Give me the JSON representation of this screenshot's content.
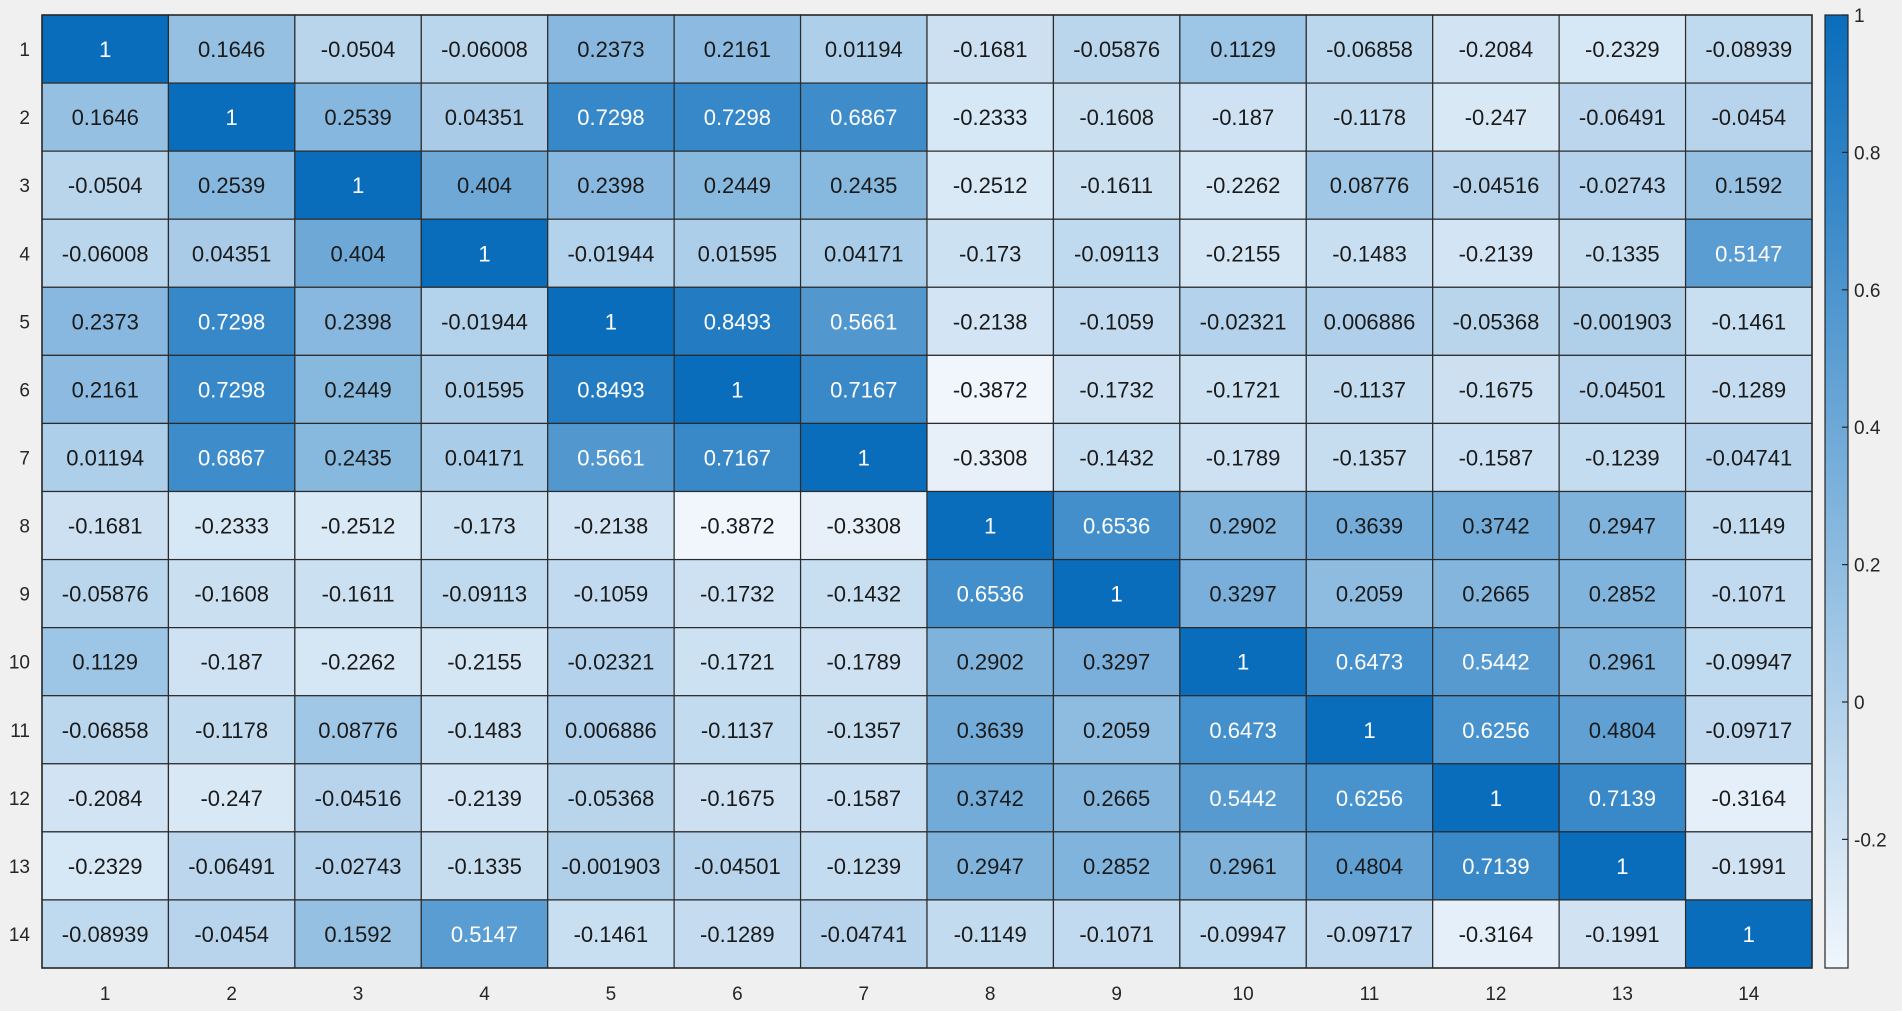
{
  "chart_data": {
    "type": "heatmap",
    "title": "",
    "xlabel": "",
    "ylabel": "",
    "x_categories": [
      "1",
      "2",
      "3",
      "4",
      "5",
      "6",
      "7",
      "8",
      "9",
      "10",
      "11",
      "12",
      "13",
      "14"
    ],
    "y_categories": [
      "1",
      "2",
      "3",
      "4",
      "5",
      "6",
      "7",
      "8",
      "9",
      "10",
      "11",
      "12",
      "13",
      "14"
    ],
    "values": [
      [
        "1",
        "0.1646",
        "-0.0504",
        "-0.06008",
        "0.2373",
        "0.2161",
        "0.01194",
        "-0.1681",
        "-0.05876",
        "0.1129",
        "-0.06858",
        "-0.2084",
        "-0.2329",
        "-0.08939"
      ],
      [
        "0.1646",
        "1",
        "0.2539",
        "0.04351",
        "0.7298",
        "0.7298",
        "0.6867",
        "-0.2333",
        "-0.1608",
        "-0.187",
        "-0.1178",
        "-0.247",
        "-0.06491",
        "-0.0454"
      ],
      [
        "-0.0504",
        "0.2539",
        "1",
        "0.404",
        "0.2398",
        "0.2449",
        "0.2435",
        "-0.2512",
        "-0.1611",
        "-0.2262",
        "0.08776",
        "-0.04516",
        "-0.02743",
        "0.1592"
      ],
      [
        "-0.06008",
        "0.04351",
        "0.404",
        "1",
        "-0.01944",
        "0.01595",
        "0.04171",
        "-0.173",
        "-0.09113",
        "-0.2155",
        "-0.1483",
        "-0.2139",
        "-0.1335",
        "0.5147"
      ],
      [
        "0.2373",
        "0.7298",
        "0.2398",
        "-0.01944",
        "1",
        "0.8493",
        "0.5661",
        "-0.2138",
        "-0.1059",
        "-0.02321",
        "0.006886",
        "-0.05368",
        "-0.001903",
        "-0.1461"
      ],
      [
        "0.2161",
        "0.7298",
        "0.2449",
        "0.01595",
        "0.8493",
        "1",
        "0.7167",
        "-0.3872",
        "-0.1732",
        "-0.1721",
        "-0.1137",
        "-0.1675",
        "-0.04501",
        "-0.1289"
      ],
      [
        "0.01194",
        "0.6867",
        "0.2435",
        "0.04171",
        "0.5661",
        "0.7167",
        "1",
        "-0.3308",
        "-0.1432",
        "-0.1789",
        "-0.1357",
        "-0.1587",
        "-0.1239",
        "-0.04741"
      ],
      [
        "-0.1681",
        "-0.2333",
        "-0.2512",
        "-0.173",
        "-0.2138",
        "-0.3872",
        "-0.3308",
        "1",
        "0.6536",
        "0.2902",
        "0.3639",
        "0.3742",
        "0.2947",
        "-0.1149"
      ],
      [
        "-0.05876",
        "-0.1608",
        "-0.1611",
        "-0.09113",
        "-0.1059",
        "-0.1732",
        "-0.1432",
        "0.6536",
        "1",
        "0.3297",
        "0.2059",
        "0.2665",
        "0.2852",
        "-0.1071"
      ],
      [
        "0.1129",
        "-0.187",
        "-0.2262",
        "-0.2155",
        "-0.02321",
        "-0.1721",
        "-0.1789",
        "0.2902",
        "0.3297",
        "1",
        "0.6473",
        "0.5442",
        "0.2961",
        "-0.09947"
      ],
      [
        "-0.06858",
        "-0.1178",
        "0.08776",
        "-0.1483",
        "0.006886",
        "-0.1137",
        "-0.1357",
        "0.3639",
        "0.2059",
        "0.6473",
        "1",
        "0.6256",
        "0.4804",
        "-0.09717"
      ],
      [
        "-0.2084",
        "-0.247",
        "-0.04516",
        "-0.2139",
        "-0.05368",
        "-0.1675",
        "-0.1587",
        "0.3742",
        "0.2665",
        "0.5442",
        "0.6256",
        "1",
        "0.7139",
        "-0.3164"
      ],
      [
        "-0.2329",
        "-0.06491",
        "-0.02743",
        "-0.1335",
        "-0.001903",
        "-0.04501",
        "-0.1239",
        "0.2947",
        "0.2852",
        "0.2961",
        "0.4804",
        "0.7139",
        "1",
        "-0.1991"
      ],
      [
        "-0.08939",
        "-0.0454",
        "0.1592",
        "0.5147",
        "-0.1461",
        "-0.1289",
        "-0.04741",
        "-0.1149",
        "-0.1071",
        "-0.09947",
        "-0.09717",
        "-0.3164",
        "-0.1991",
        "1"
      ]
    ],
    "colorbar": {
      "min": -0.3872,
      "max": 1,
      "ticks": [
        "-0.2",
        "0",
        "0.2",
        "0.4",
        "0.6",
        "0.8",
        "1"
      ],
      "low_color": "#f0f6fc",
      "high_color": "#0a6dbb"
    },
    "grid": true,
    "legend": "colorbar-right"
  }
}
